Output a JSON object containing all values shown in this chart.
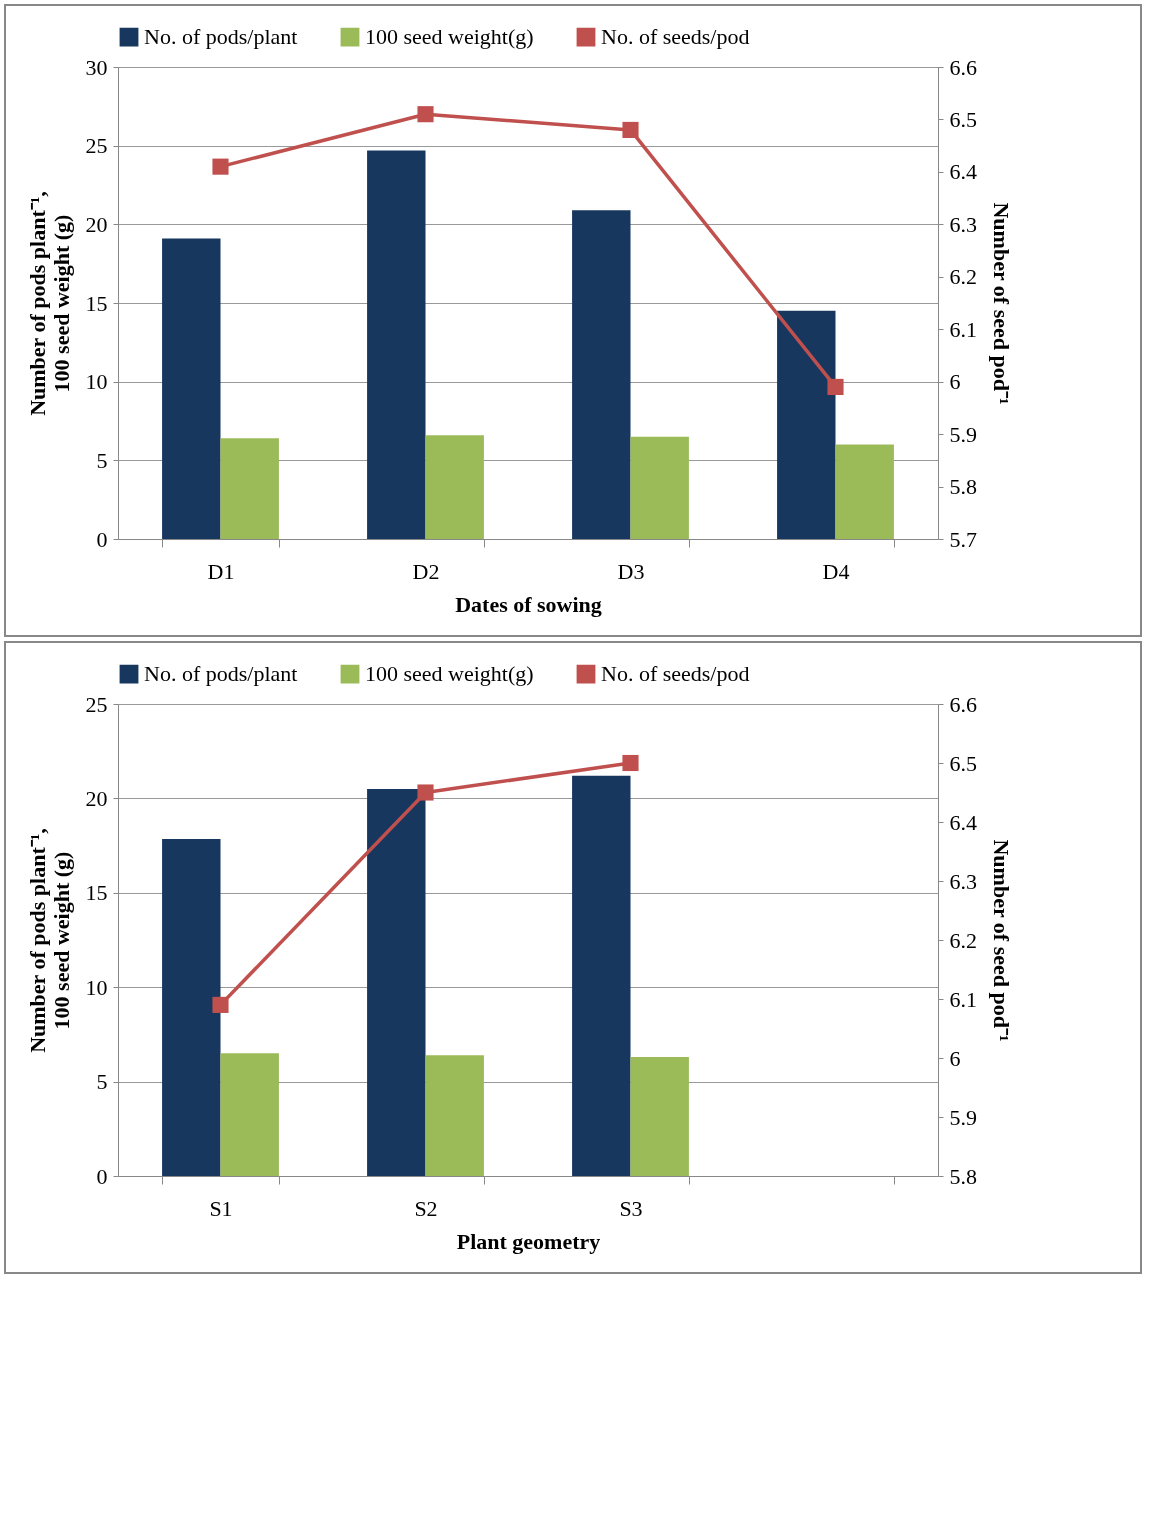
{
  "chart_data": [
    {
      "type": "bar",
      "categories": [
        "D1",
        "D2",
        "D3",
        "D4"
      ],
      "xlabel": "Dates of sowing",
      "ylabel": "Number of pods plant⁻¹, 100 seed weight (g)",
      "y2label": "Number of seed pod⁻¹",
      "ylim": [
        0,
        30
      ],
      "yticks": [
        0,
        5,
        10,
        15,
        20,
        25,
        30
      ],
      "y2lim": [
        5.7,
        6.6
      ],
      "y2ticks": [
        5.7,
        5.8,
        5.9,
        6,
        6.1,
        6.2,
        6.3,
        6.4,
        6.5,
        6.6
      ],
      "grid": "y",
      "legend": "top",
      "marker": "square",
      "series": [
        {
          "name": "No. of pods/plant",
          "color": "#17375e",
          "values": [
            19.1,
            24.7,
            20.9,
            14.5
          ]
        },
        {
          "name": "100 seed weight(g)",
          "color": "#9bbb59",
          "values": [
            6.4,
            6.6,
            6.5,
            6.0
          ]
        },
        {
          "name": "No. of seeds/pod",
          "type": "line",
          "axis": "y2",
          "color": "#c0504d",
          "values": [
            6.41,
            6.51,
            6.48,
            5.99
          ]
        }
      ]
    },
    {
      "type": "bar",
      "categories": [
        "S1",
        "S2",
        "S3",
        null
      ],
      "xlabel": "Plant geometry",
      "ylabel": "Number of pods plant⁻¹, 100 seed weight (g)",
      "y2label": "Number of seed pod⁻¹",
      "ylim": [
        0,
        25
      ],
      "yticks": [
        0,
        5,
        10,
        15,
        20,
        25
      ],
      "y2lim": [
        5.8,
        6.6
      ],
      "y2ticks": [
        5.8,
        5.9,
        6,
        6.1,
        6.2,
        6.3,
        6.4,
        6.5,
        6.6
      ],
      "grid": "y",
      "legend": "top",
      "marker": "square",
      "series": [
        {
          "name": "No. of pods/plant",
          "color": "#17375e",
          "values": [
            17.85,
            20.5,
            21.2,
            null
          ]
        },
        {
          "name": "100 seed weight(g)",
          "color": "#9bbb59",
          "values": [
            6.5,
            6.4,
            6.3,
            null
          ]
        },
        {
          "name": "No. of seeds/pod",
          "type": "line",
          "axis": "y2",
          "color": "#c0504d",
          "values": [
            6.09,
            6.45,
            6.5,
            null
          ]
        }
      ]
    }
  ]
}
